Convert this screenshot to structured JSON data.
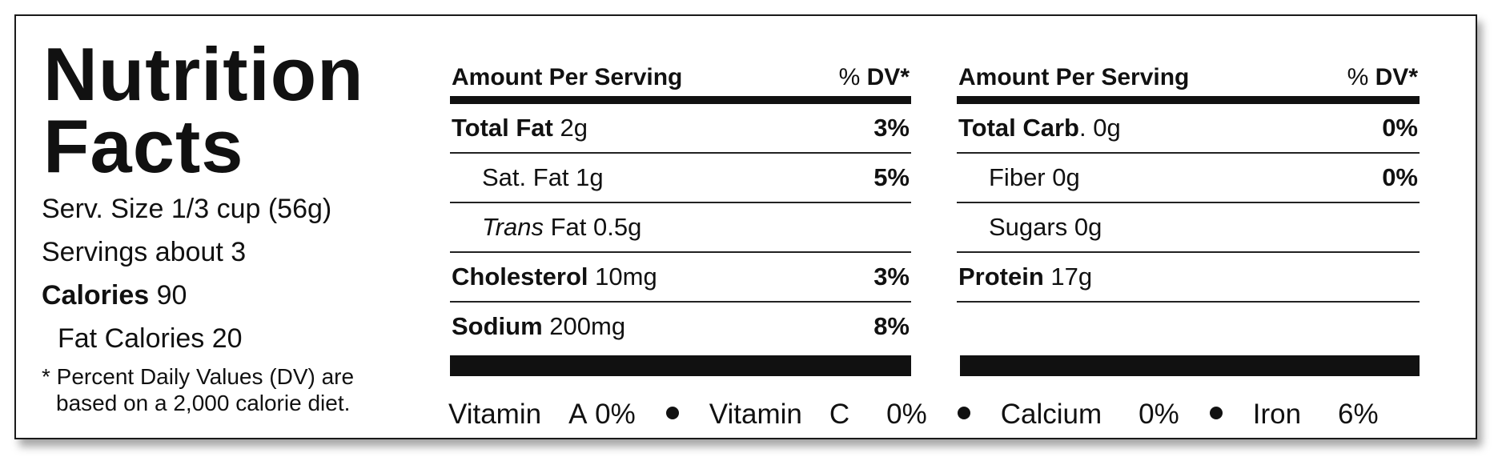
{
  "title": {
    "line1": "Nutrition",
    "line2": "Facts"
  },
  "serving": {
    "size": "Serv. Size 1/3 cup (56g)",
    "servings": "Servings about 3",
    "calories_label": "Calories",
    "calories_value": " 90",
    "fat_calories": "Fat Calories 20"
  },
  "footnote": {
    "line1": "* Percent Daily Values (DV) are",
    "line2": "based on a 2,000 calorie diet."
  },
  "header": {
    "amount": "Amount Per Serving",
    "dv_prefix": "% ",
    "dv_bold": "DV*"
  },
  "left_table": [
    {
      "name": "Total Fat",
      "amount": " 2g",
      "dv": "3%"
    },
    {
      "name_pre": "",
      "name_italic": "Trans",
      "name": "Sat. Fat",
      "amount": " 1g",
      "dv": "5%"
    },
    {
      "name_italic": "Trans",
      "name": " Fat",
      "amount": " 0.5g",
      "dv": ""
    },
    {
      "name": "Cholesterol",
      "amount": " 10mg",
      "dv": "3%"
    },
    {
      "name": "Sodium",
      "amount": " 200mg",
      "dv": "8%"
    }
  ],
  "right_table": [
    {
      "name": "Total Carb",
      "amount": ". 0g",
      "dv": "0%"
    },
    {
      "name": "Fiber 0g",
      "dv": "0%"
    },
    {
      "name": "Sugars 0g",
      "dv": ""
    },
    {
      "name": "Protein",
      "amount": " 17g",
      "dv": ""
    },
    {
      "name": "",
      "dv": ""
    }
  ],
  "vitamins": [
    {
      "name": "Vitamin",
      "letter": "A",
      "value": "0%"
    },
    {
      "name": "Vitamin",
      "letter": "C",
      "value": "0%"
    },
    {
      "name": "Calcium",
      "letter": "",
      "value": "0%"
    },
    {
      "name": "Iron",
      "letter": "",
      "value": "6%"
    }
  ]
}
